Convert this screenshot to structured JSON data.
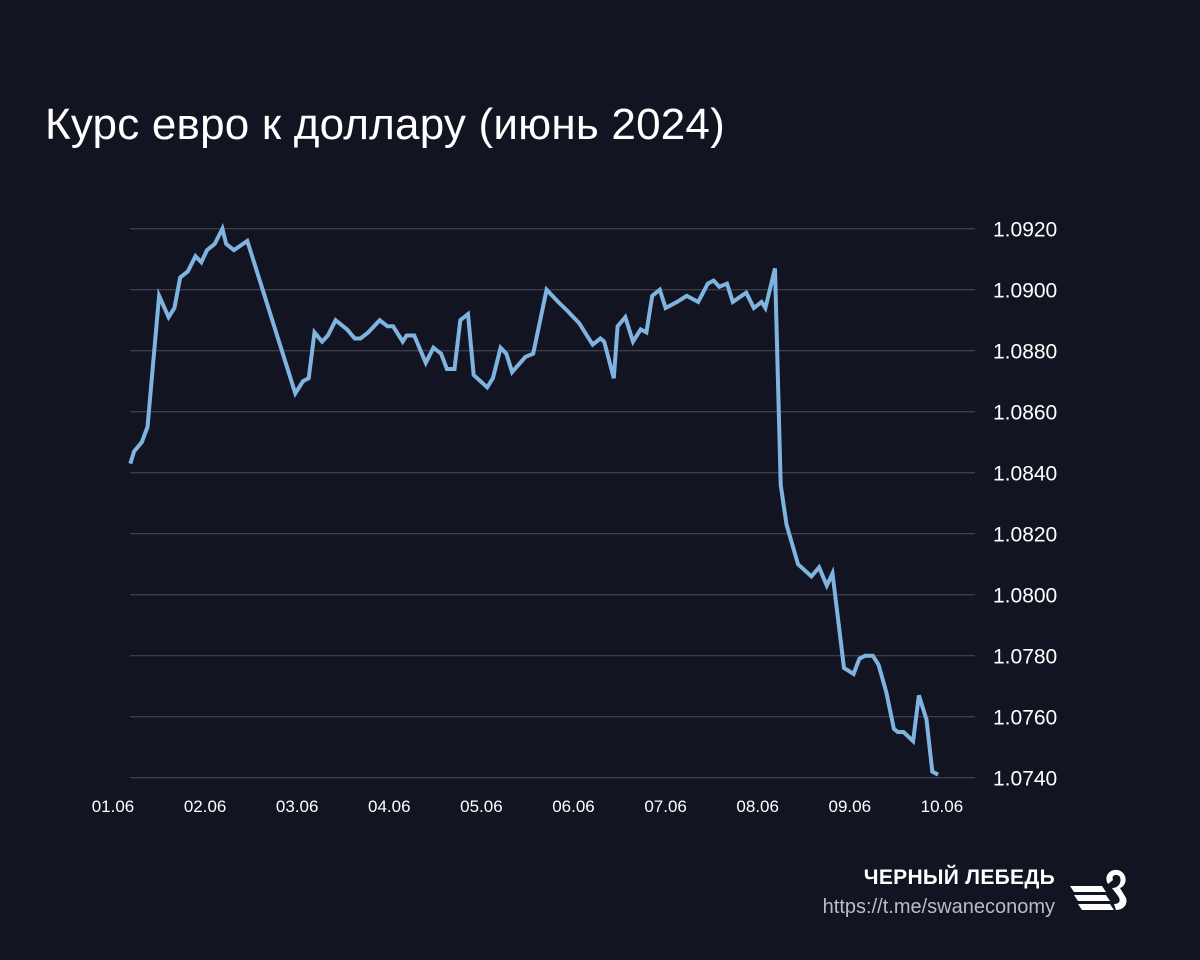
{
  "chart_data": {
    "type": "line",
    "title": "Курс евро к доллару (июнь 2024)",
    "xlabel": "",
    "ylabel": "",
    "x_tick_labels": [
      "01.06",
      "02.06",
      "03.06",
      "04.06",
      "05.06",
      "06.06",
      "07.06",
      "08.06",
      "09.06",
      "10.06"
    ],
    "y_tick_labels": [
      "1.0920",
      "1.0900",
      "1.0880",
      "1.0860",
      "1.0840",
      "1.0820",
      "1.0800",
      "1.0780",
      "1.0760",
      "1.0740"
    ],
    "ylim": [
      1.074,
      1.092
    ],
    "y_axis_side": "right",
    "grid": "horizontal",
    "line_color": "#7fb3e0",
    "background_color": "#121421",
    "series": [
      {
        "x": [
          "01.06 04:30",
          "01.06 05:30",
          "01.06 07:30",
          "01.06 09:00",
          "01.06 12:00",
          "01.06 14:30",
          "01.06 16:00",
          "01.06 17:30",
          "01.06 19:30",
          "01.06 21:30",
          "01.06 23:00",
          "02.06 00:30",
          "02.06 02:30",
          "02.06 04:30",
          "02.06 05:30",
          "02.06 07:30",
          "02.06 11:00",
          "02.06 23:30",
          "03.06 01:30",
          "03.06 03:00",
          "03.06 04:30",
          "03.06 06:30",
          "03.06 08:00",
          "03.06 10:00",
          "03.06 13:00",
          "03.06 15:00",
          "03.06 16:30",
          "03.06 18:30",
          "03.06 21:30",
          "03.06 23:30",
          "04.06 01:00",
          "04.06 03:30",
          "04.06 04:30",
          "04.06 06:30",
          "04.06 09:30",
          "04.06 11:30",
          "04.06 13:30",
          "04.06 15:00",
          "04.06 17:00",
          "04.06 18:30",
          "04.06 20:30",
          "04.06 22:00",
          "05.06 01:30",
          "05.06 03:00",
          "05.06 05:00",
          "05.06 06:30",
          "05.06 08:00",
          "05.06 11:30",
          "05.06 13:30",
          "05.06 17:00",
          "05.06 20:00",
          "05.06 22:30",
          "06.06 00:00",
          "06.06 01:30",
          "06.06 03:30",
          "06.06 05:00",
          "06.06 07:00",
          "06.06 08:00",
          "06.06 10:30",
          "06.06 11:30",
          "06.06 13:30",
          "06.06 15:30",
          "06.06 17:30",
          "06.06 19:00",
          "06.06 20:30",
          "06.06 22:30",
          "07.06 00:00",
          "07.06 03:00",
          "07.06 05:30",
          "07.06 08:30",
          "07.06 11:00",
          "07.06 12:30",
          "07.06 14:00",
          "07.06 16:00",
          "07.06 17:30",
          "07.06 21:00",
          "07.06 23:00",
          "08.06 01:00",
          "08.06 02:00",
          "08.06 04:30",
          "08.06 06:00",
          "08.06 07:30",
          "08.06 10:30",
          "08.06 14:00",
          "08.06 16:00",
          "08.06 18:00",
          "08.06 19:30",
          "08.06 22:30",
          "09.06 01:00",
          "09.06 02:30",
          "09.06 04:00",
          "09.06 06:00",
          "09.06 07:30",
          "09.06 09:30",
          "09.06 11:30",
          "09.06 12:30",
          "09.06 14:00",
          "09.06 16:30",
          "09.06 18:00",
          "09.06 20:00",
          "09.06 21:30",
          "09.06 23:00"
        ],
        "y": [
          1.0843,
          1.0847,
          1.085,
          1.0855,
          1.0898,
          1.0891,
          1.0894,
          1.0904,
          1.0906,
          1.0911,
          1.0909,
          1.0913,
          1.0915,
          1.092,
          1.0915,
          1.0913,
          1.0916,
          1.0866,
          1.087,
          1.0871,
          1.0886,
          1.0883,
          1.0885,
          1.089,
          1.0887,
          1.0884,
          1.0884,
          1.0886,
          1.089,
          1.0888,
          1.0888,
          1.0883,
          1.0885,
          1.0885,
          1.0876,
          1.0881,
          1.0879,
          1.0874,
          1.0874,
          1.089,
          1.0892,
          1.0872,
          1.0868,
          1.0871,
          1.0881,
          1.0879,
          1.0873,
          1.0878,
          1.0879,
          1.09,
          1.0896,
          1.0893,
          1.0891,
          1.0889,
          1.0885,
          1.0882,
          1.0884,
          1.0883,
          1.0871,
          1.0888,
          1.0891,
          1.0883,
          1.0887,
          1.0886,
          1.0898,
          1.09,
          1.0894,
          1.0896,
          1.0898,
          1.0896,
          1.0902,
          1.0903,
          1.0901,
          1.0902,
          1.0896,
          1.0899,
          1.0894,
          1.0896,
          1.0894,
          1.0907,
          1.0836,
          1.0823,
          1.081,
          1.0806,
          1.0809,
          1.0803,
          1.0807,
          1.0776,
          1.0774,
          1.0779,
          1.078,
          1.078,
          1.0777,
          1.0768,
          1.0756,
          1.0755,
          1.0755,
          1.0752,
          1.0767,
          1.0759,
          1.0742,
          1.0741
        ]
      }
    ]
  },
  "branding": {
    "name": "ЧЕРНЫЙ ЛЕБЕДЬ",
    "link": "https://t.me/swaneconomy",
    "logo_icon": "swan-logo-icon"
  }
}
